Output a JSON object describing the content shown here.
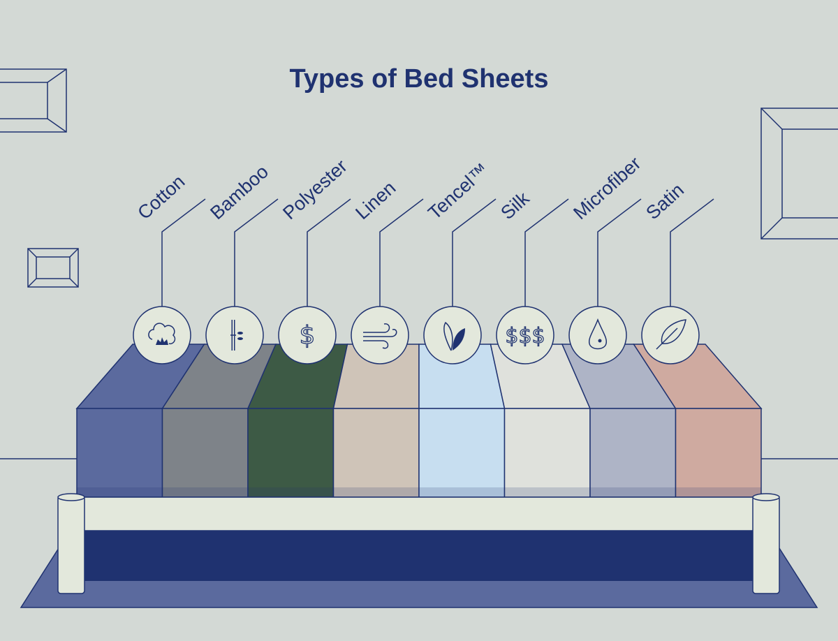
{
  "title": "Types of Bed Sheets",
  "colors": {
    "background": "#d3d9d5",
    "ink": "#1f3270",
    "icon_fill": "#e3e8dc",
    "frame": "#e3e8dc",
    "rug": "#5b6a9e"
  },
  "sheets": [
    {
      "label": "Cotton",
      "icon": "cotton-flower-icon",
      "color": "#5b6a9e"
    },
    {
      "label": "Bamboo",
      "icon": "bamboo-icon",
      "color": "#7e8389"
    },
    {
      "label": "Polyester",
      "icon": "dollar-icon",
      "color": "#3d5a45"
    },
    {
      "label": "Linen",
      "icon": "wind-icon",
      "color": "#cfc4b8"
    },
    {
      "label": "Tencel™",
      "icon": "leaves-icon",
      "color": "#c7def0"
    },
    {
      "label": "Silk",
      "icon": "triple-dollar-icon",
      "color": "#dfe1dc"
    },
    {
      "label": "Microfiber",
      "icon": "water-drop-icon",
      "color": "#aeb4c6"
    },
    {
      "label": "Satin",
      "icon": "feather-icon",
      "color": "#cfaaa0"
    }
  ]
}
